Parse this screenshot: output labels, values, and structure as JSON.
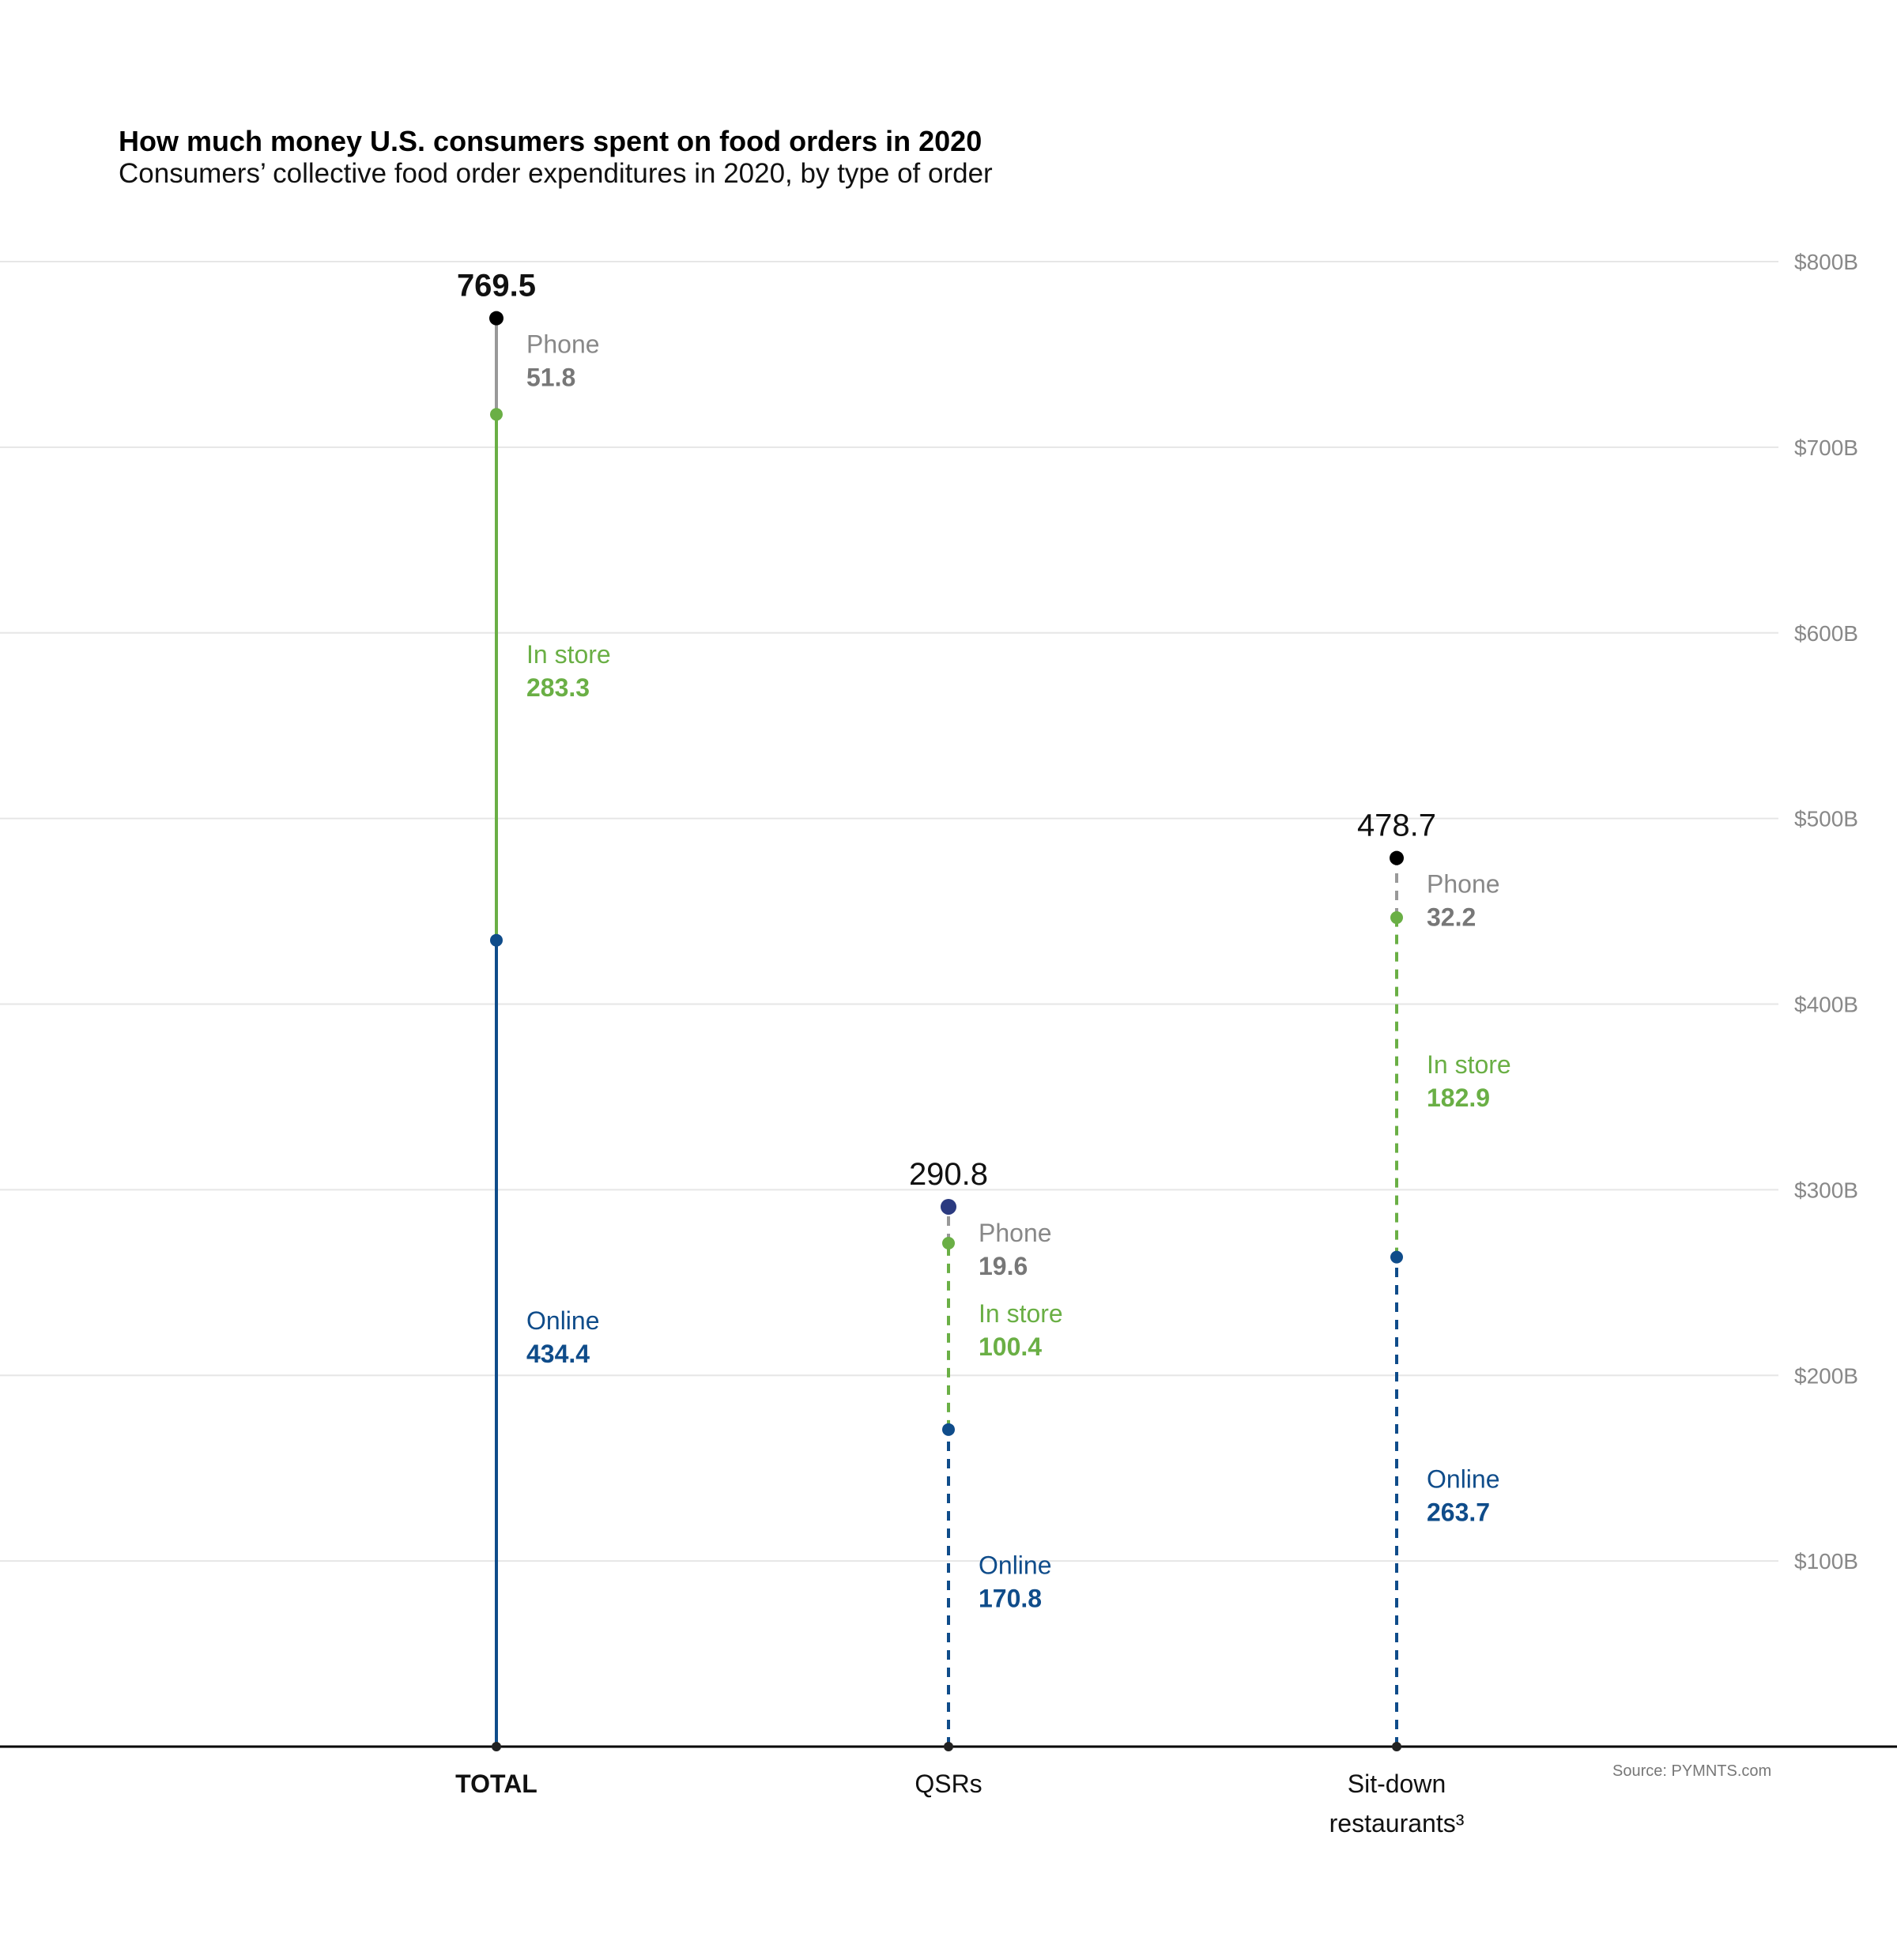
{
  "chart_data": {
    "type": "line",
    "title": "How much money U.S. consumers spent on food orders in 2020",
    "subtitle": "Consumers’ collective food order expenditures in 2020, by type of order",
    "source": "Source: PYMNTS.com",
    "ylim": [
      0,
      800
    ],
    "y_ticks": [
      {
        "value": 100,
        "label": "$100B"
      },
      {
        "value": 200,
        "label": "$200B"
      },
      {
        "value": 300,
        "label": "$300B"
      },
      {
        "value": 400,
        "label": "$400B"
      },
      {
        "value": 500,
        "label": "$500B"
      },
      {
        "value": 600,
        "label": "$600B"
      },
      {
        "value": 700,
        "label": "$700B"
      },
      {
        "value": 800,
        "label": "$800B"
      }
    ],
    "categories": [
      {
        "label": "TOTAL",
        "label_lines": [
          "TOTAL"
        ],
        "bold": true,
        "dashed": false,
        "total": 769.5,
        "total_label": "769.5",
        "segments": [
          {
            "name": "Online",
            "value": 434.4,
            "value_label": "434.4"
          },
          {
            "name": "In store",
            "value": 283.3,
            "value_label": "283.3"
          },
          {
            "name": "Phone",
            "value": 51.8,
            "value_label": "51.8"
          }
        ]
      },
      {
        "label": "QSRs",
        "label_lines": [
          "QSRs"
        ],
        "bold": false,
        "dashed": true,
        "total": 290.8,
        "total_label": "290.8",
        "segments": [
          {
            "name": "Online",
            "value": 170.8,
            "value_label": "170.8"
          },
          {
            "name": "In store",
            "value": 100.4,
            "value_label": "100.4"
          },
          {
            "name": "Phone",
            "value": 19.6,
            "value_label": "19.6"
          }
        ]
      },
      {
        "label": "Sit-down restaurants³",
        "label_lines": [
          "Sit-down",
          "restaurants³"
        ],
        "bold": false,
        "dashed": true,
        "total": 478.7,
        "total_label": "478.7",
        "segments": [
          {
            "name": "Online",
            "value": 263.7,
            "value_label": "263.7"
          },
          {
            "name": "In store",
            "value": 182.9,
            "value_label": "182.9"
          },
          {
            "name": "Phone",
            "value": 32.2,
            "value_label": "32.2"
          }
        ]
      }
    ],
    "colors": {
      "Online": "#0f4c8a",
      "In store": "#6aaf45",
      "Phone": "#999999",
      "total_dot": "#000000",
      "qsr_total_dot": "#2b3a80",
      "grid": "#e6e6e6",
      "axis": "#000000"
    }
  }
}
